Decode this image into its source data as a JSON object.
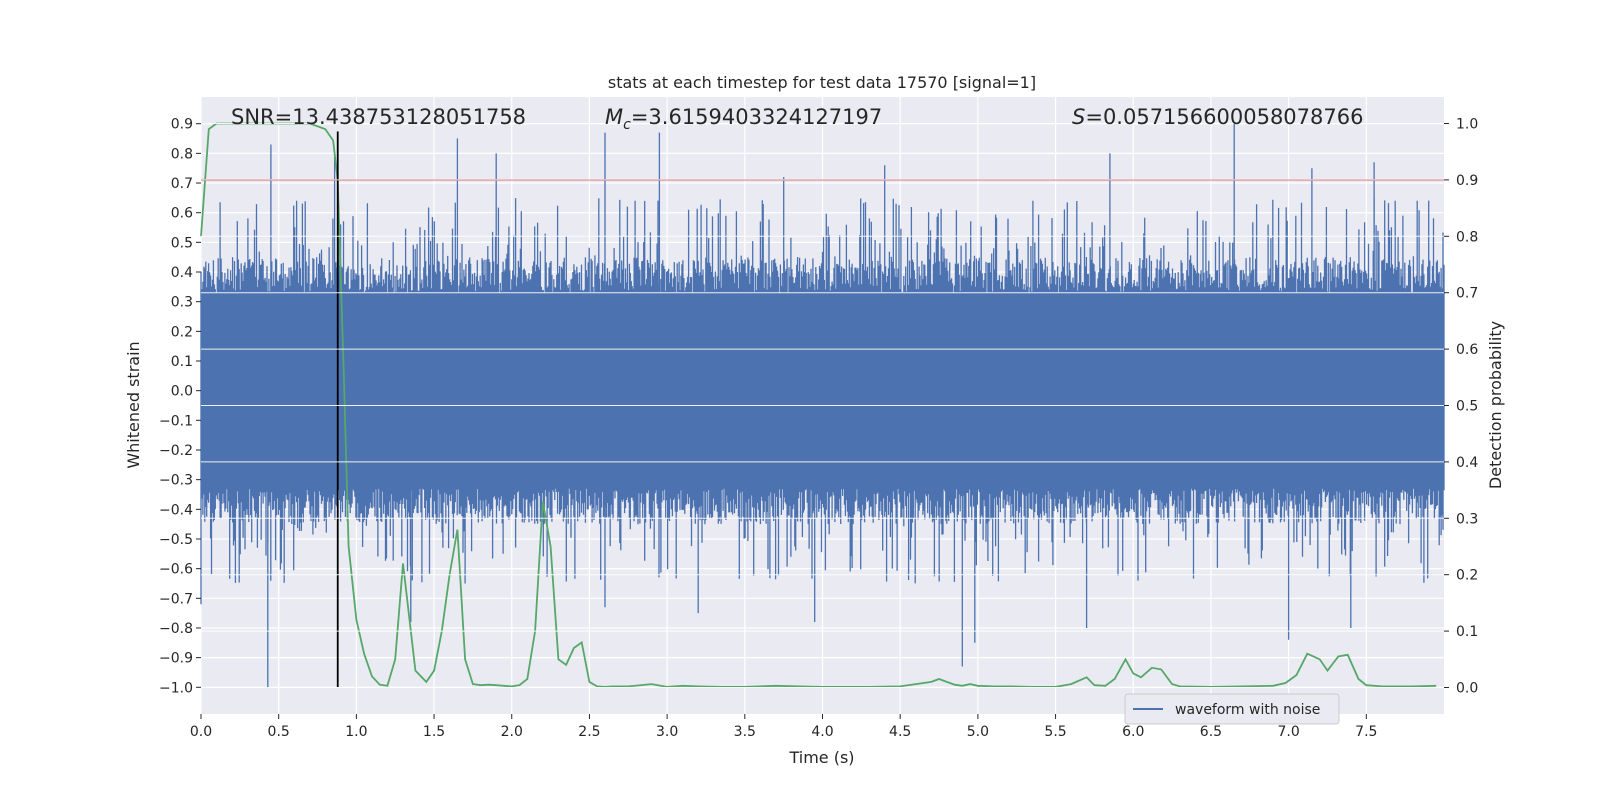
{
  "colors": {
    "background": "#eaeaf2",
    "grid": "#ffffff",
    "waveform": "#4c72b0",
    "probability": "#55a868",
    "threshold": "#c44e52",
    "marker": "#000000",
    "text": "#262626"
  },
  "chart_data": {
    "type": "line",
    "title": "stats at each timestep for test data 17570 [signal=1]",
    "xlabel": "Time (s)",
    "ylabel_left": "Whitened strain",
    "ylabel_right": "Detection probability",
    "xlim": [
      0.0,
      8.0
    ],
    "ylim_left": [
      -1.09,
      0.99
    ],
    "ylim_right": [
      -0.047,
      1.047
    ],
    "x_ticks": [
      "0.0",
      "0.5",
      "1.0",
      "1.5",
      "2.0",
      "2.5",
      "3.0",
      "3.5",
      "4.0",
      "4.5",
      "5.0",
      "5.5",
      "6.0",
      "6.5",
      "7.0",
      "7.5"
    ],
    "y_ticks_left": [
      "0.9",
      "0.8",
      "0.7",
      "0.6",
      "0.5",
      "0.4",
      "0.3",
      "0.2",
      "0.1",
      "0.0",
      "−0.1",
      "−0.2",
      "−0.3",
      "−0.4",
      "−0.5",
      "−0.6",
      "−0.7",
      "−0.8",
      "−0.9",
      "−1.0"
    ],
    "y_ticks_right": [
      "1.0",
      "0.9",
      "0.8",
      "0.7",
      "0.6",
      "0.5",
      "0.4",
      "0.3",
      "0.2",
      "0.1",
      "0.0"
    ],
    "grid": true,
    "legend": {
      "position": "lower-right",
      "entries": [
        "waveform with noise"
      ]
    },
    "annotations": {
      "snr": "SNR=13.438753128051758",
      "mc_symbol": "M",
      "mc_sub": "c",
      "mc_value": "=3.6159403324127197",
      "s_symbol": "S",
      "s_value": "=0.057156600058078766"
    },
    "threshold_probability": 0.9,
    "marker_time": 0.88,
    "series": [
      {
        "name": "waveform with noise",
        "axis": "left",
        "style": "dense noise, central band approx ±0.33 with spikes to approx ±0.9",
        "band": [
          -0.33,
          0.33
        ],
        "x_range": [
          0.0,
          8.0
        ],
        "spikes_up": [
          [
            0.45,
            0.83
          ],
          [
            0.86,
            0.8
          ],
          [
            1.65,
            0.85
          ],
          [
            1.9,
            0.8
          ],
          [
            2.6,
            0.87
          ],
          [
            2.95,
            0.87
          ],
          [
            3.75,
            0.72
          ],
          [
            4.4,
            0.76
          ],
          [
            6.65,
            0.9
          ],
          [
            7.15,
            0.75
          ],
          [
            7.55,
            0.77
          ],
          [
            5.85,
            0.8
          ]
        ],
        "spikes_down": [
          [
            0.43,
            -1.0
          ],
          [
            0.0,
            -0.72
          ],
          [
            1.35,
            -0.78
          ],
          [
            1.7,
            -0.65
          ],
          [
            2.6,
            -0.73
          ],
          [
            3.2,
            -0.75
          ],
          [
            3.95,
            -0.78
          ],
          [
            4.9,
            -0.93
          ],
          [
            4.98,
            -0.85
          ],
          [
            5.7,
            -0.8
          ],
          [
            7.0,
            -0.84
          ],
          [
            7.4,
            -0.8
          ]
        ]
      },
      {
        "name": "",
        "axis": "right",
        "x": [
          0.0,
          0.05,
          0.1,
          0.15,
          0.2,
          0.3,
          0.4,
          0.5,
          0.6,
          0.7,
          0.8,
          0.85,
          0.88,
          0.92,
          0.95,
          1.0,
          1.05,
          1.1,
          1.15,
          1.2,
          1.25,
          1.3,
          1.38,
          1.45,
          1.5,
          1.55,
          1.6,
          1.65,
          1.7,
          1.75,
          1.8,
          1.85,
          1.9,
          2.0,
          2.05,
          2.1,
          2.15,
          2.2,
          2.25,
          2.3,
          2.35,
          2.4,
          2.45,
          2.5,
          2.55,
          2.6,
          2.65,
          2.75,
          2.9,
          3.0,
          3.1,
          3.2,
          3.35,
          3.5,
          3.7,
          3.85,
          4.0,
          4.1,
          4.3,
          4.5,
          4.7,
          4.75,
          4.85,
          4.9,
          4.95,
          5.0,
          5.1,
          5.2,
          5.35,
          5.5,
          5.6,
          5.7,
          5.75,
          5.82,
          5.88,
          5.95,
          6.0,
          6.05,
          6.12,
          6.18,
          6.25,
          6.3,
          6.5,
          6.7,
          6.9,
          6.98,
          7.05,
          7.12,
          7.2,
          7.25,
          7.32,
          7.38,
          7.45,
          7.5,
          7.6,
          7.8,
          7.95
        ],
        "values": [
          0.8,
          0.99,
          1.0,
          1.0,
          1.0,
          1.0,
          1.0,
          1.0,
          1.0,
          1.0,
          0.99,
          0.97,
          0.9,
          0.55,
          0.25,
          0.12,
          0.06,
          0.02,
          0.005,
          0.003,
          0.05,
          0.22,
          0.03,
          0.01,
          0.03,
          0.1,
          0.2,
          0.28,
          0.05,
          0.006,
          0.004,
          0.005,
          0.004,
          0.002,
          0.004,
          0.015,
          0.1,
          0.33,
          0.25,
          0.05,
          0.04,
          0.07,
          0.08,
          0.01,
          0.002,
          0.001,
          0.002,
          0.002,
          0.006,
          0.001,
          0.003,
          0.002,
          0.001,
          0.001,
          0.003,
          0.002,
          0.001,
          0.001,
          0.001,
          0.002,
          0.01,
          0.015,
          0.005,
          0.003,
          0.006,
          0.003,
          0.002,
          0.002,
          0.001,
          0.001,
          0.006,
          0.018,
          0.004,
          0.003,
          0.015,
          0.05,
          0.025,
          0.018,
          0.035,
          0.032,
          0.006,
          0.002,
          0.001,
          0.002,
          0.003,
          0.008,
          0.022,
          0.06,
          0.05,
          0.03,
          0.055,
          0.058,
          0.015,
          0.004,
          0.002,
          0.002,
          0.003
        ]
      }
    ]
  }
}
